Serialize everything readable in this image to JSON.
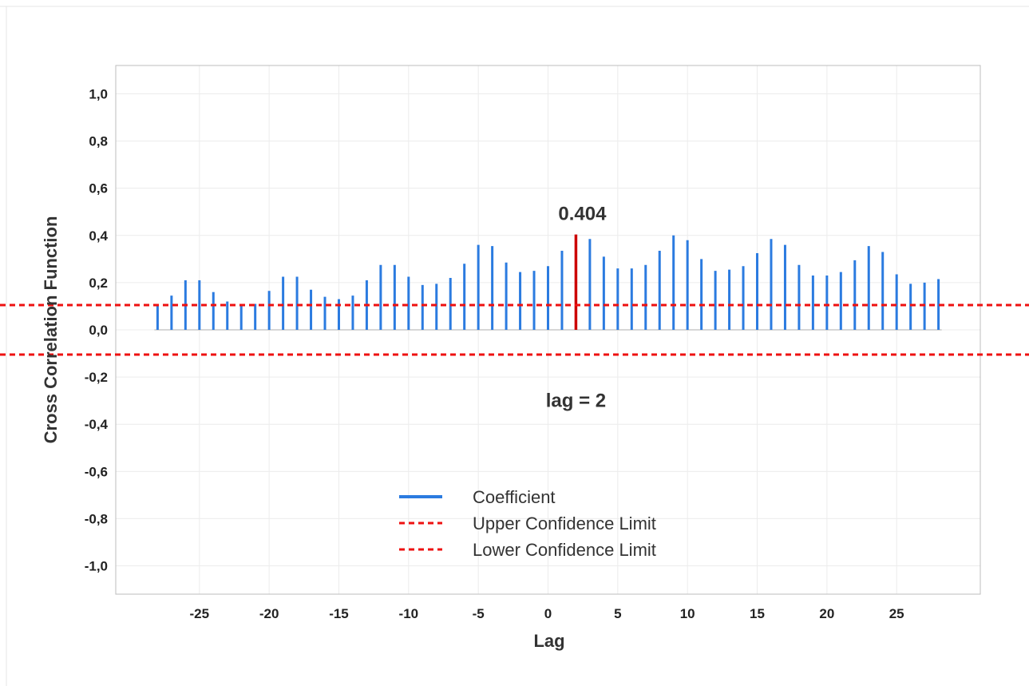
{
  "chart_data": {
    "type": "bar",
    "x": [
      -28,
      -27,
      -26,
      -25,
      -24,
      -23,
      -22,
      -21,
      -20,
      -19,
      -18,
      -17,
      -16,
      -15,
      -14,
      -13,
      -12,
      -11,
      -10,
      -9,
      -8,
      -7,
      -6,
      -5,
      -4,
      -3,
      -2,
      -1,
      0,
      1,
      2,
      3,
      4,
      5,
      6,
      7,
      8,
      9,
      10,
      11,
      12,
      13,
      14,
      15,
      16,
      17,
      18,
      19,
      20,
      21,
      22,
      23,
      24,
      25,
      26,
      27,
      28
    ],
    "values": [
      0.105,
      0.145,
      0.21,
      0.21,
      0.16,
      0.12,
      0.105,
      0.11,
      0.165,
      0.225,
      0.225,
      0.17,
      0.14,
      0.13,
      0.145,
      0.21,
      0.275,
      0.275,
      0.225,
      0.19,
      0.195,
      0.22,
      0.28,
      0.36,
      0.355,
      0.285,
      0.245,
      0.25,
      0.27,
      0.335,
      0.404,
      0.385,
      0.31,
      0.26,
      0.26,
      0.275,
      0.335,
      0.4,
      0.38,
      0.3,
      0.25,
      0.255,
      0.27,
      0.325,
      0.385,
      0.36,
      0.275,
      0.23,
      0.23,
      0.245,
      0.295,
      0.355,
      0.33,
      0.235,
      0.195,
      0.2,
      0.215
    ],
    "highlight_x": 2,
    "upper_confidence_limit": 0.105,
    "lower_confidence_limit": -0.105,
    "xlabel": "Lag",
    "ylabel": "Cross Correlation Function",
    "xlim": [
      -31,
      31
    ],
    "ylim": [
      -1.12,
      1.12
    ],
    "x_ticks": [
      -25,
      -20,
      -15,
      -10,
      -5,
      0,
      5,
      10,
      15,
      20,
      25
    ],
    "x_tick_labels": [
      "-25",
      "-20",
      "-15",
      "-10",
      "-5",
      "0",
      "5",
      "10",
      "15",
      "20",
      "25"
    ],
    "y_ticks": [
      1.0,
      0.8,
      0.6,
      0.4,
      0.2,
      0.0,
      -0.2,
      -0.4,
      -0.6,
      -0.8,
      -1.0
    ],
    "y_tick_labels": [
      "1,0",
      "0,8",
      "0,6",
      "0,4",
      "0,2",
      "0,0",
      "-0,2",
      "-0,4",
      "-0,6",
      "-0,8",
      "-1,0"
    ],
    "grid": true,
    "legend_position": "bottom-center",
    "legend": [
      {
        "label": "Coefficient",
        "style": "solid",
        "color": "#2b7be0"
      },
      {
        "label": "Upper Confidence Limit",
        "style": "dashed",
        "color": "#ee1111"
      },
      {
        "label": "Lower Confidence Limit",
        "style": "dashed",
        "color": "#ee1111"
      }
    ],
    "annotations": {
      "peak_value": "0.404",
      "lag_text": "lag = 2"
    },
    "colors": {
      "coefficient": "#2b7be0",
      "highlight": "#cc0000",
      "confidence": "#ee1111",
      "grid": "#ececec",
      "zero_line": "#c8c8c8"
    }
  }
}
